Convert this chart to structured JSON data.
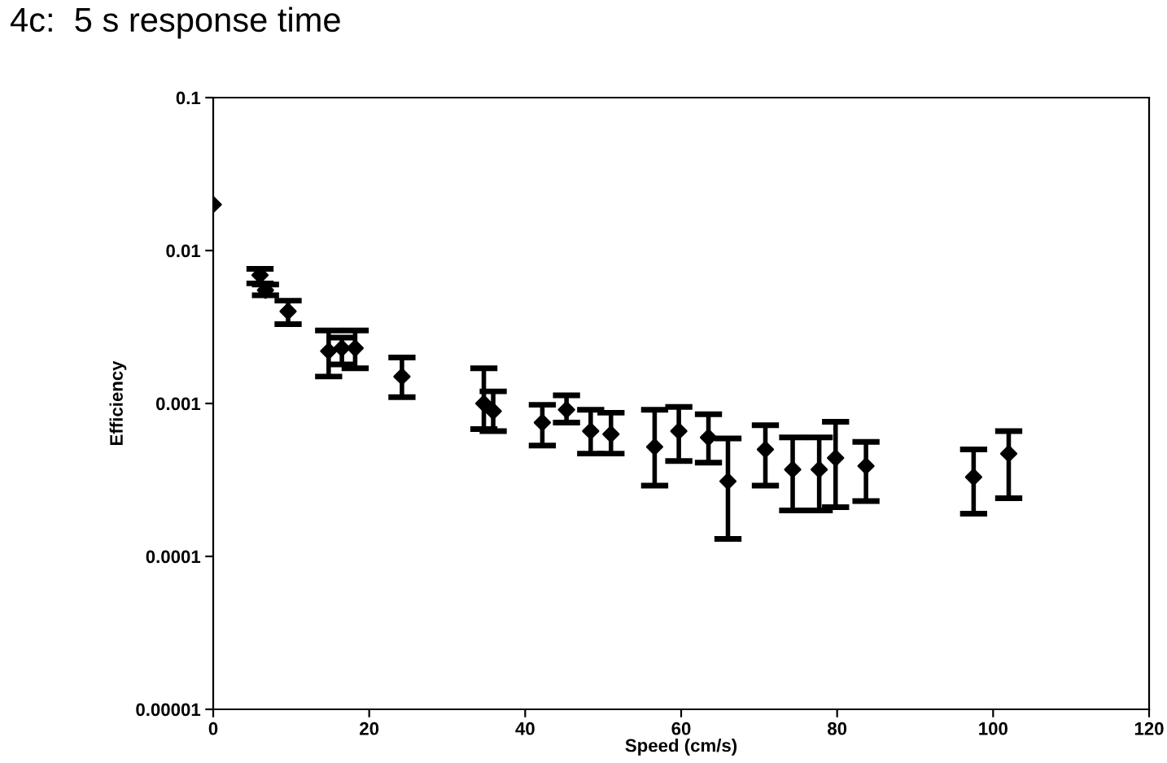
{
  "chart_data": {
    "type": "scatter",
    "title": "4c:  5 s response time",
    "xlabel": "Speed (cm/s)",
    "ylabel": "Efficiency",
    "x": [
      0,
      6,
      6.7,
      9.6,
      14.8,
      16.5,
      18.2,
      24.2,
      34.7,
      35.9,
      42.2,
      45.3,
      48.4,
      51,
      56.6,
      59.7,
      63.5,
      66,
      70.8,
      74.3,
      77.7,
      79.8,
      83.7,
      97.5,
      102
    ],
    "values": [
      0.02,
      0.0069,
      0.0055,
      0.004,
      0.0022,
      0.0023,
      0.0023,
      0.0015,
      0.001,
      0.00089,
      0.00075,
      0.00091,
      0.00066,
      0.00063,
      0.00052,
      0.00066,
      0.0006,
      0.00031,
      0.0005,
      0.00037,
      0.00037,
      0.00044,
      0.00039,
      0.00033,
      0.00047
    ],
    "errors": [
      null,
      [
        0.0061,
        0.0076
      ],
      [
        0.0051,
        0.006
      ],
      [
        0.0033,
        0.0047
      ],
      [
        0.0015,
        0.003
      ],
      [
        0.0018,
        0.0027
      ],
      [
        0.0017,
        0.003
      ],
      [
        0.0011,
        0.002
      ],
      [
        0.00068,
        0.0017
      ],
      [
        0.00066,
        0.0012
      ],
      [
        0.00053,
        0.00098
      ],
      [
        0.00075,
        0.00113
      ],
      [
        0.00047,
        0.00091
      ],
      [
        0.00047,
        0.00087
      ],
      [
        0.00029,
        0.00091
      ],
      [
        0.00042,
        0.00095
      ],
      [
        0.00041,
        0.00085
      ],
      [
        0.00013,
        0.00059
      ],
      [
        0.00029,
        0.00072
      ],
      [
        0.0002,
        0.0006
      ],
      [
        0.0002,
        0.0006
      ],
      [
        0.00021,
        0.00076
      ],
      [
        0.00023,
        0.00056
      ],
      [
        0.00019,
        0.0005
      ],
      [
        0.00024,
        0.00066
      ]
    ],
    "color": "#000000",
    "marker": "diamond",
    "log": "y",
    "grid": false,
    "xlim": [
      0,
      120
    ],
    "xticks": [
      0,
      20,
      40,
      60,
      80,
      100,
      120
    ],
    "ylim": [
      1e-05,
      0.1
    ],
    "yticks": [
      {
        "value": 1e-05,
        "label": "0.00001"
      },
      {
        "value": 0.0001,
        "label": "0.0001"
      },
      {
        "value": 0.001,
        "label": "0.001"
      },
      {
        "value": 0.01,
        "label": "0.01"
      },
      {
        "value": 0.1,
        "label": "0.1"
      }
    ]
  }
}
